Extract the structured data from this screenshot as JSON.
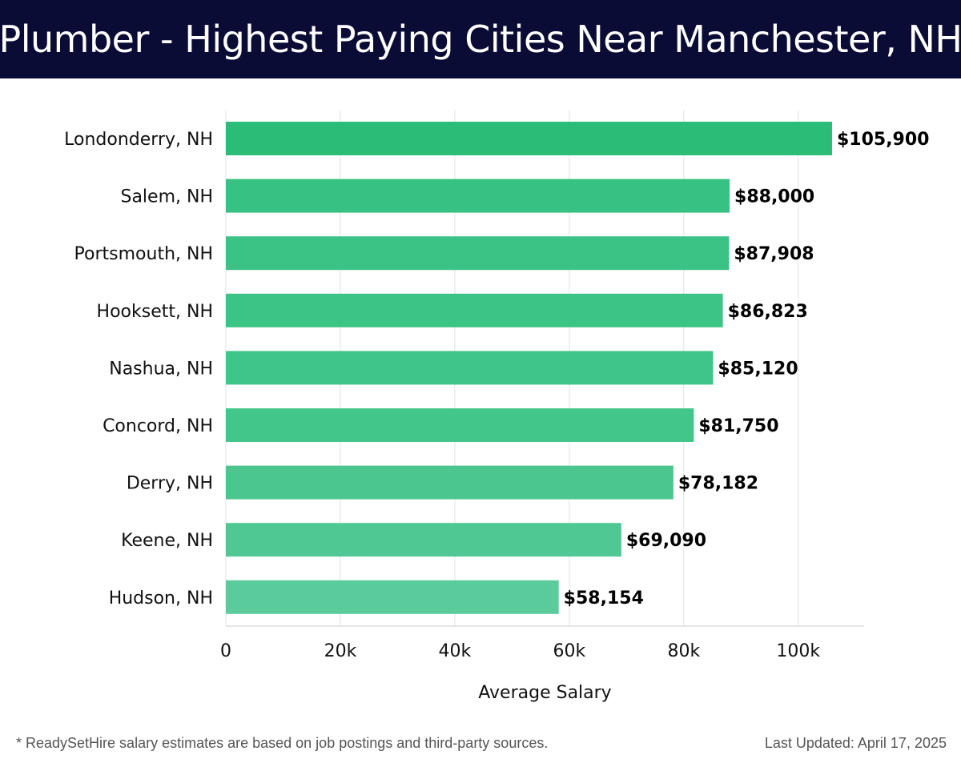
{
  "header": {
    "title": "Plumber - Highest Paying Cities Near Manchester, NH"
  },
  "chart_data": {
    "type": "bar",
    "orientation": "horizontal",
    "title": "Plumber - Highest Paying Cities Near Manchester, NH",
    "categories": [
      "Londonderry, NH",
      "Salem, NH",
      "Portsmouth, NH",
      "Hooksett, NH",
      "Nashua, NH",
      "Concord, NH",
      "Derry, NH",
      "Keene, NH",
      "Hudson, NH"
    ],
    "values": [
      105900,
      88000,
      87908,
      86823,
      85120,
      81750,
      78182,
      69090,
      58154
    ],
    "value_labels": [
      "$105,900",
      "$88,000",
      "$87,908",
      "$86,823",
      "$85,120",
      "$81,750",
      "$78,182",
      "$69,090",
      "$58,154"
    ],
    "bar_colors": [
      "#2bbd77",
      "#37c283",
      "#3ac384",
      "#3cc486",
      "#3fc589",
      "#43c68a",
      "#4ac68e",
      "#50c893",
      "#5acb9b"
    ],
    "xlabel": "Average Salary",
    "ylabel": "",
    "xlim": [
      0,
      111500
    ],
    "xticks": [
      0,
      20000,
      40000,
      60000,
      80000,
      100000
    ],
    "xtick_labels": [
      "0",
      "20k",
      "40k",
      "60k",
      "80k",
      "100k"
    ],
    "grid": true
  },
  "footer": {
    "note": "* ReadySetHire salary estimates are based on job postings and third-party sources.",
    "updated": "Last Updated: April 17, 2025"
  },
  "colors": {
    "header_bg": "#0b0c35",
    "grid": "#e3e3e3",
    "axis": "#cccccc"
  }
}
